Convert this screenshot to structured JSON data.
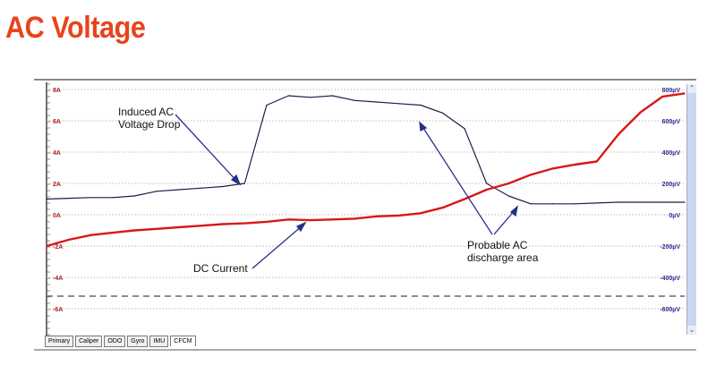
{
  "title": "AC Voltage",
  "tabs": [
    "Primary",
    "Caliper",
    "ODO",
    "Gyro",
    "IMU",
    "CFCM"
  ],
  "active_tab": "CFCM",
  "annotations": {
    "induced": "Induced AC\nVoltage Drop",
    "induced_l1": "Induced AC",
    "induced_l2": "Voltage Drop",
    "dc": "DC Current",
    "discharge_l1": "Probable AC",
    "discharge_l2": "discharge area"
  },
  "colors": {
    "title": "#e8431c",
    "ac_series": "#1a1f4a",
    "dc_series": "#d81818",
    "left_axis_labels": "#b02020",
    "right_axis_labels": "#3a2a90"
  },
  "icons": {
    "scroll_up": "chevron-up-icon",
    "scroll_down": "chevron-down-icon"
  },
  "chart_data": {
    "type": "line",
    "grid": true,
    "left_axis": {
      "ticks": [
        "8A",
        "6A",
        "4A",
        "2A",
        "0A",
        "-2A",
        "-4A",
        "-6A"
      ],
      "range": [
        -7,
        8.5
      ]
    },
    "right_axis": {
      "ticks": [
        "800µV",
        "600µV",
        "400µV",
        "200µV",
        "0µV",
        "-200µV",
        "-400µV",
        "-600µV"
      ],
      "range": [
        -700,
        850
      ]
    },
    "reference_line": {
      "axis": "left",
      "value": -5.2,
      "style": "dashed"
    },
    "series": [
      {
        "axis": "left",
        "values": [
          1.0,
          1.05,
          1.1,
          1.1,
          1.2,
          1.5,
          1.6,
          1.7,
          1.8,
          2.0,
          7.0,
          7.6,
          7.5,
          7.6,
          7.3,
          7.2,
          7.1,
          7.0,
          6.5,
          5.5,
          2.0,
          1.2,
          0.7,
          0.7,
          0.7,
          0.75,
          0.8,
          0.8,
          0.8,
          0.8
        ]
      },
      {
        "axis": "right",
        "values": [
          -200,
          -160,
          -130,
          -115,
          -100,
          -90,
          -80,
          -70,
          -60,
          -55,
          -45,
          -30,
          -35,
          -30,
          -25,
          -10,
          -5,
          10,
          45,
          100,
          160,
          200,
          255,
          295,
          320,
          340,
          515,
          655,
          755,
          775
        ]
      }
    ]
  }
}
